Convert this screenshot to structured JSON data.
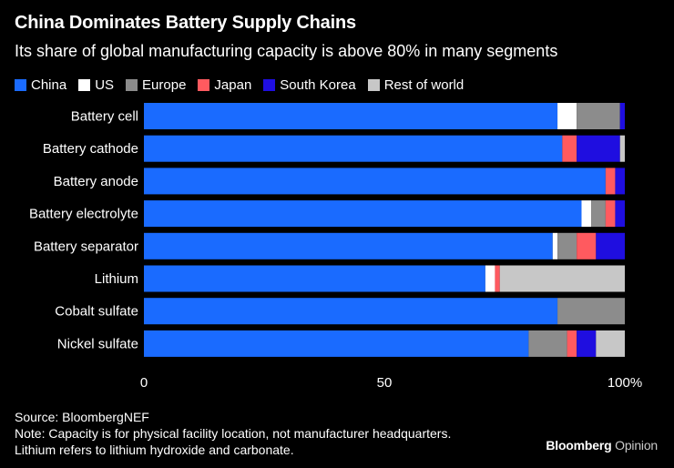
{
  "header": {
    "title": "China Dominates Battery Supply Chains",
    "subtitle": "Its share of global manufacturing capacity is above 80% in many segments"
  },
  "footer": {
    "source": "Source: BloombergNEF",
    "note": "Note: Capacity is for physical facility location, not manufacturer headquarters.",
    "note2": "Lithium refers to lithium hydroxide and carbonate.",
    "brand_bold": "Bloomberg",
    "brand_light": "Opinion"
  },
  "chart_data": {
    "type": "bar",
    "orientation": "horizontal",
    "stacked": true,
    "categories": [
      "Battery cell",
      "Battery cathode",
      "Battery anode",
      "Battery electrolyte",
      "Battery separator",
      "Lithium",
      "Cobalt sulfate",
      "Nickel sulfate"
    ],
    "series": [
      {
        "name": "China",
        "color": "#1a6bff",
        "values": [
          86,
          87,
          96,
          91,
          85,
          71,
          86,
          80
        ]
      },
      {
        "name": "US",
        "color": "#ffffff",
        "values": [
          4,
          0,
          0,
          2,
          1,
          2,
          0,
          0
        ]
      },
      {
        "name": "Europe",
        "color": "#8c8c8c",
        "values": [
          9,
          0,
          0,
          3,
          4,
          0,
          14,
          8
        ]
      },
      {
        "name": "Japan",
        "color": "#ff5a5f",
        "values": [
          0,
          3,
          2,
          2,
          4,
          1,
          0,
          2
        ]
      },
      {
        "name": "South Korea",
        "color": "#1f0ee0",
        "values": [
          1,
          9,
          2,
          2,
          6,
          0,
          0,
          4
        ]
      },
      {
        "name": "Rest of world",
        "color": "#c7c7c7",
        "values": [
          0,
          1,
          0,
          0,
          0,
          26,
          0,
          6
        ]
      }
    ],
    "xticks": [
      "0",
      "50",
      "100%"
    ],
    "xtick_values": [
      0,
      50,
      100
    ],
    "xlim": [
      0,
      100
    ],
    "legend_position": "top-left"
  }
}
